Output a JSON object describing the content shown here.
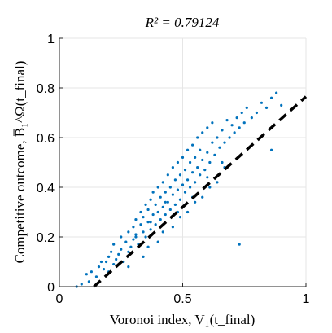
{
  "chart_data": {
    "type": "scatter",
    "title": "R² = 0.79124",
    "xlabel": "Voronoi index, V₁(t_final)",
    "ylabel": "Competitive outcome, B̅₁^Ω(t_final)",
    "xlim": [
      0,
      1
    ],
    "ylim": [
      0,
      1
    ],
    "xticks": [
      "0",
      "0.5",
      "1"
    ],
    "yticks": [
      "0",
      "0.2",
      "0.4",
      "0.6",
      "0.8",
      "1"
    ],
    "grid": true,
    "marker_color": "#0072BD",
    "fit_line": {
      "style": "dashed",
      "color": "#000000",
      "x": [
        0.14,
        1.0
      ],
      "y": [
        0.0,
        0.765
      ]
    },
    "x": [
      0.07,
      0.09,
      0.11,
      0.12,
      0.13,
      0.15,
      0.16,
      0.17,
      0.18,
      0.19,
      0.2,
      0.2,
      0.21,
      0.22,
      0.22,
      0.23,
      0.24,
      0.25,
      0.25,
      0.26,
      0.27,
      0.28,
      0.28,
      0.29,
      0.3,
      0.3,
      0.31,
      0.31,
      0.32,
      0.33,
      0.33,
      0.34,
      0.34,
      0.35,
      0.35,
      0.36,
      0.36,
      0.37,
      0.37,
      0.38,
      0.38,
      0.39,
      0.39,
      0.4,
      0.4,
      0.41,
      0.41,
      0.42,
      0.42,
      0.43,
      0.43,
      0.44,
      0.44,
      0.45,
      0.45,
      0.46,
      0.46,
      0.47,
      0.47,
      0.48,
      0.48,
      0.49,
      0.49,
      0.5,
      0.5,
      0.51,
      0.51,
      0.52,
      0.52,
      0.53,
      0.53,
      0.54,
      0.54,
      0.55,
      0.55,
      0.56,
      0.56,
      0.57,
      0.57,
      0.58,
      0.58,
      0.59,
      0.6,
      0.6,
      0.61,
      0.62,
      0.62,
      0.63,
      0.64,
      0.65,
      0.66,
      0.67,
      0.68,
      0.69,
      0.7,
      0.71,
      0.72,
      0.73,
      0.74,
      0.75,
      0.76,
      0.78,
      0.8,
      0.82,
      0.84,
      0.86,
      0.88,
      0.9,
      0.73,
      0.86,
      0.28,
      0.34,
      0.4,
      0.46,
      0.52,
      0.58,
      0.64,
      0.31,
      0.37,
      0.43,
      0.49,
      0.55,
      0.61,
      0.67,
      0.36,
      0.42,
      0.48,
      0.54,
      0.6,
      0.66
    ],
    "y": [
      0.0,
      0.01,
      0.05,
      0.02,
      0.06,
      0.04,
      0.08,
      0.1,
      0.07,
      0.1,
      0.12,
      0.06,
      0.14,
      0.09,
      0.17,
      0.11,
      0.13,
      0.15,
      0.2,
      0.1,
      0.18,
      0.22,
      0.14,
      0.16,
      0.24,
      0.19,
      0.21,
      0.27,
      0.17,
      0.25,
      0.3,
      0.22,
      0.28,
      0.2,
      0.33,
      0.26,
      0.31,
      0.23,
      0.35,
      0.29,
      0.38,
      0.25,
      0.33,
      0.3,
      0.4,
      0.27,
      0.36,
      0.32,
      0.42,
      0.29,
      0.38,
      0.34,
      0.45,
      0.31,
      0.4,
      0.37,
      0.48,
      0.33,
      0.43,
      0.39,
      0.5,
      0.35,
      0.45,
      0.41,
      0.52,
      0.38,
      0.47,
      0.43,
      0.55,
      0.4,
      0.5,
      0.46,
      0.57,
      0.42,
      0.52,
      0.48,
      0.6,
      0.45,
      0.55,
      0.51,
      0.62,
      0.47,
      0.54,
      0.64,
      0.5,
      0.58,
      0.66,
      0.53,
      0.6,
      0.56,
      0.63,
      0.58,
      0.67,
      0.6,
      0.65,
      0.62,
      0.68,
      0.64,
      0.7,
      0.66,
      0.72,
      0.68,
      0.7,
      0.74,
      0.72,
      0.76,
      0.78,
      0.73,
      0.17,
      0.55,
      0.08,
      0.12,
      0.18,
      0.24,
      0.3,
      0.36,
      0.42,
      0.2,
      0.26,
      0.34,
      0.28,
      0.34,
      0.4,
      0.48,
      0.16,
      0.22,
      0.3,
      0.36,
      0.44,
      0.5
    ]
  }
}
